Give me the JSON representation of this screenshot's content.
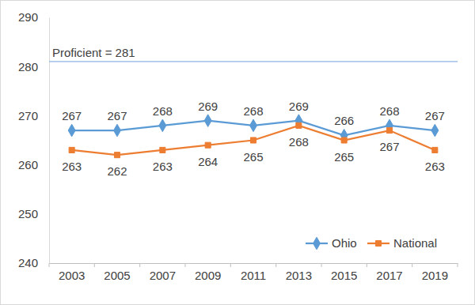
{
  "chart_data": {
    "type": "line",
    "categories": [
      "2003",
      "2005",
      "2007",
      "2009",
      "2011",
      "2013",
      "2015",
      "2017",
      "2019"
    ],
    "series": [
      {
        "name": "Ohio",
        "color": "#5b9bd5",
        "marker": "diamond",
        "values": [
          267,
          267,
          268,
          269,
          268,
          269,
          266,
          268,
          267
        ]
      },
      {
        "name": "National",
        "color": "#ed7d31",
        "marker": "square",
        "values": [
          263,
          262,
          263,
          264,
          265,
          268,
          265,
          267,
          263
        ]
      }
    ],
    "ylim": [
      240,
      290
    ],
    "yticks": [
      240,
      250,
      260,
      270,
      280,
      290
    ],
    "grid": false,
    "legend": "lower right",
    "data_labels": true,
    "annotations": [
      {
        "text": "Proficient = 281",
        "y": 281,
        "color": "#8db4e2"
      }
    ]
  }
}
